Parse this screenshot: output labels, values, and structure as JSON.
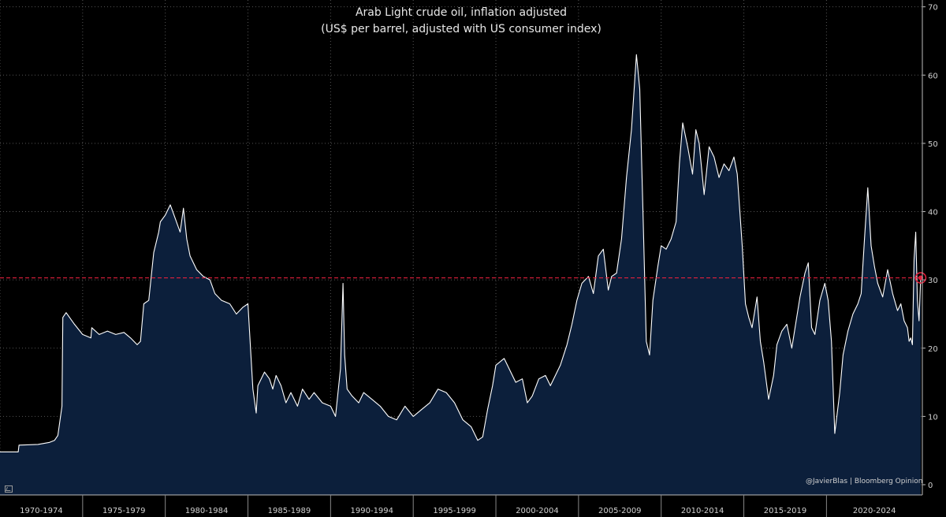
{
  "title": {
    "line1": "Arab Light crude oil, inflation adjusted",
    "line2": "(US$ per barrel, adjusted with US consumer index)"
  },
  "credit": "@JavierBlas | Bloomberg Opinion",
  "colors": {
    "background": "#000000",
    "area_fill": "#0c1f3b",
    "line": "#ffffff",
    "reference_line": "#e0203c",
    "grid": "#555555",
    "text": "#e8e8e8"
  },
  "chart_data": {
    "type": "area",
    "title": "Arab Light crude oil, inflation adjusted",
    "subtitle": "(US$ per barrel, adjusted with US consumer index)",
    "xlabel": "",
    "ylabel": "",
    "x_range": [
      1970.0,
      2025.8
    ],
    "ylim": [
      -1.5,
      71
    ],
    "y_ticks": [
      0,
      10,
      20,
      30,
      40,
      50,
      60,
      70
    ],
    "y_axis_side": "right",
    "x_tick_labels": [
      "1970-1974",
      "1975-1979",
      "1980-1984",
      "1985-1989",
      "1990-1994",
      "1995-1999",
      "2000-2004",
      "2005-2009",
      "2010-2014",
      "2015-2019",
      "2020-2024"
    ],
    "x_tick_positions": [
      1970,
      1975,
      1980,
      1985,
      1990,
      1995,
      2000,
      2005,
      2010,
      2015,
      2020
    ],
    "grid": true,
    "reference_line": {
      "value": 30.3,
      "style": "dashed"
    },
    "last_value": 30.3,
    "series": [
      {
        "x": [
          1970.0,
          1971.1,
          1971.15,
          1972.3,
          1973.0,
          1973.3,
          1973.5,
          1973.75,
          1973.8,
          1974.0,
          1974.5,
          1975.0,
          1975.5,
          1975.55,
          1976.0,
          1976.5,
          1977.0,
          1977.5,
          1977.9,
          1978.3,
          1978.5,
          1978.7,
          1979.0,
          1979.3,
          1979.6,
          1979.7,
          1980.0,
          1980.3,
          1980.6,
          1980.9,
          1981.1,
          1981.3,
          1981.5,
          1981.9,
          1982.3,
          1982.7,
          1983.0,
          1983.4,
          1983.9,
          1984.3,
          1984.7,
          1985.0,
          1985.3,
          1985.5,
          1985.6,
          1986.0,
          1986.3,
          1986.5,
          1986.7,
          1987.0,
          1987.3,
          1987.6,
          1988.0,
          1988.3,
          1988.7,
          1989.0,
          1989.5,
          1990.0,
          1990.3,
          1990.6,
          1990.75,
          1990.85,
          1991.0,
          1991.3,
          1991.7,
          1992.0,
          1992.5,
          1993.0,
          1993.5,
          1994.0,
          1994.5,
          1995.0,
          1995.5,
          1996.0,
          1996.5,
          1997.0,
          1997.5,
          1998.0,
          1998.5,
          1998.9,
          1999.2,
          1999.5,
          1999.8,
          2000.0,
          2000.5,
          2000.9,
          2001.2,
          2001.6,
          2001.9,
          2002.2,
          2002.6,
          2003.0,
          2003.3,
          2003.6,
          2003.9,
          2004.3,
          2004.6,
          2004.9,
          2005.2,
          2005.6,
          2005.9,
          2006.2,
          2006.5,
          2006.8,
          2007.0,
          2007.3,
          2007.6,
          2007.9,
          2008.2,
          2008.5,
          2008.7,
          2008.9,
          2009.1,
          2009.3,
          2009.5,
          2009.8,
          2010.0,
          2010.3,
          2010.6,
          2010.9,
          2011.1,
          2011.3,
          2011.6,
          2011.9,
          2012.1,
          2012.3,
          2012.6,
          2012.9,
          2013.2,
          2013.5,
          2013.8,
          2014.1,
          2014.4,
          2014.6,
          2014.9,
          2015.1,
          2015.3,
          2015.5,
          2015.8,
          2016.0,
          2016.2,
          2016.5,
          2016.8,
          2017.0,
          2017.3,
          2017.6,
          2017.9,
          2018.2,
          2018.4,
          2018.7,
          2018.9,
          2019.1,
          2019.3,
          2019.6,
          2019.9,
          2020.1,
          2020.3,
          2020.5,
          2020.8,
          2021.0,
          2021.3,
          2021.6,
          2021.9,
          2022.1,
          2022.3,
          2022.5,
          2022.7,
          2022.9,
          2023.1,
          2023.4,
          2023.7,
          2024.0,
          2024.3,
          2024.5,
          2024.7,
          2024.9,
          2025.0,
          2025.1,
          2025.2,
          2025.3,
          2025.4,
          2025.5,
          2025.6,
          2025.7
        ],
        "y": [
          4.8,
          4.8,
          5.8,
          5.9,
          6.2,
          6.5,
          7.2,
          11.5,
          24.5,
          25.2,
          23.5,
          22.0,
          21.5,
          23.0,
          22.0,
          22.5,
          22.0,
          22.3,
          21.5,
          20.5,
          21.0,
          26.5,
          27.0,
          34.0,
          37.0,
          38.5,
          39.5,
          41.0,
          39.0,
          37.0,
          40.5,
          36.0,
          33.5,
          31.5,
          30.5,
          30.0,
          28.0,
          27.0,
          26.5,
          25.0,
          26.0,
          26.5,
          14.0,
          10.5,
          14.5,
          16.5,
          15.5,
          14.0,
          16.0,
          14.5,
          12.0,
          13.5,
          11.5,
          14.0,
          12.5,
          13.5,
          12.0,
          11.5,
          10.0,
          17.0,
          29.5,
          19.0,
          14.0,
          13.0,
          12.0,
          13.5,
          12.5,
          11.5,
          10.0,
          9.5,
          11.5,
          10.0,
          11.0,
          12.0,
          14.0,
          13.5,
          12.0,
          9.5,
          8.5,
          6.5,
          7.0,
          11.0,
          14.5,
          17.5,
          18.5,
          16.5,
          15.0,
          15.5,
          12.0,
          13.0,
          15.5,
          16.0,
          14.5,
          16.0,
          17.5,
          20.5,
          23.5,
          27.0,
          29.5,
          30.5,
          28.0,
          33.5,
          34.5,
          28.5,
          30.5,
          31.0,
          36.0,
          45.0,
          52.0,
          63.0,
          58.0,
          40.0,
          21.0,
          19.0,
          27.0,
          32.0,
          35.0,
          34.5,
          36.0,
          38.5,
          47.0,
          53.0,
          49.5,
          45.5,
          52.0,
          50.0,
          42.5,
          49.5,
          48.0,
          45.0,
          47.0,
          46.0,
          48.0,
          45.5,
          35.0,
          26.5,
          24.5,
          23.0,
          27.5,
          21.0,
          18.0,
          12.5,
          16.0,
          20.5,
          22.5,
          23.5,
          20.0,
          24.5,
          27.5,
          31.0,
          32.5,
          23.0,
          22.0,
          27.0,
          29.5,
          27.0,
          21.0,
          7.5,
          13.5,
          19.0,
          22.5,
          25.0,
          26.5,
          28.0,
          36.0,
          43.5,
          35.0,
          32.0,
          29.5,
          27.5,
          31.5,
          28.0,
          25.5,
          26.5,
          24.0,
          23.0,
          21.0,
          21.5,
          20.5,
          33.0,
          37.0,
          27.0,
          24.0,
          30.3
        ]
      }
    ]
  }
}
